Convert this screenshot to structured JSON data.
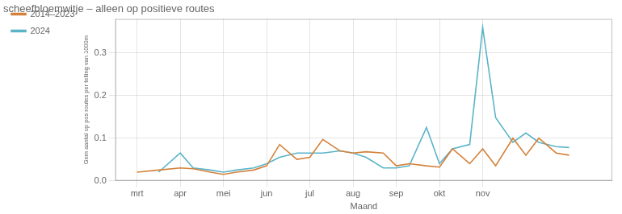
{
  "chart_data": {
    "type": "line",
    "title": "scheefbloemwitje – alleen op positieve routes",
    "xlabel": "Maand",
    "ylabel": "Gem aantal op pos routes per telling van 1000m",
    "xlim": [
      2.5,
      14.0
    ],
    "xticks": [
      {
        "value": 3,
        "label": "mrt"
      },
      {
        "value": 4,
        "label": "apr"
      },
      {
        "value": 5,
        "label": "mei"
      },
      {
        "value": 6,
        "label": "jun"
      },
      {
        "value": 7,
        "label": "jul"
      },
      {
        "value": 8,
        "label": "aug"
      },
      {
        "value": 9,
        "label": "sep"
      },
      {
        "value": 10,
        "label": "okt"
      },
      {
        "value": 11,
        "label": "nov"
      }
    ],
    "ylim": [
      0,
      0.38
    ],
    "yticks": [
      {
        "value": 0,
        "label": "0.0"
      },
      0.1,
      0.2,
      0.3
    ],
    "grid": true,
    "legend": "upper left",
    "series": [
      {
        "name": "2014–2023",
        "color": "#d4813a",
        "x": [
          3.0,
          3.5,
          4.0,
          4.3,
          4.7,
          5.0,
          5.3,
          5.7,
          6.0,
          6.3,
          6.7,
          7.0,
          7.3,
          7.7,
          8.0,
          8.3,
          8.7,
          9.0,
          9.3,
          9.7,
          10.0,
          10.3,
          10.7,
          11.0,
          11.3,
          11.7,
          12.0,
          12.3,
          12.7,
          13.0
        ],
        "values": [
          0.02,
          0.025,
          0.03,
          0.028,
          0.02,
          0.015,
          0.02,
          0.025,
          0.035,
          0.085,
          0.05,
          0.055,
          0.097,
          0.07,
          0.065,
          0.068,
          0.065,
          0.035,
          0.04,
          0.035,
          0.032,
          0.075,
          0.04,
          0.075,
          0.035,
          0.1,
          0.06,
          0.1,
          0.065,
          0.06
        ]
      },
      {
        "name": "2024",
        "color": "#5ab4c8",
        "x": [
          3.5,
          4.0,
          4.3,
          4.7,
          5.0,
          5.3,
          5.7,
          6.0,
          6.3,
          6.7,
          7.0,
          7.3,
          7.7,
          8.0,
          8.3,
          8.7,
          9.0,
          9.3,
          9.7,
          10.0,
          10.3,
          10.7,
          11.0,
          11.3,
          11.7,
          12.0,
          12.3,
          12.7,
          13.0
        ],
        "values": [
          0.02,
          0.065,
          0.03,
          0.025,
          0.02,
          0.025,
          0.03,
          0.04,
          0.055,
          0.065,
          0.065,
          0.065,
          0.07,
          0.065,
          0.055,
          0.03,
          0.03,
          0.035,
          0.125,
          0.04,
          0.075,
          0.085,
          0.36,
          0.148,
          0.09,
          0.112,
          0.09,
          0.08,
          0.078
        ]
      }
    ]
  }
}
